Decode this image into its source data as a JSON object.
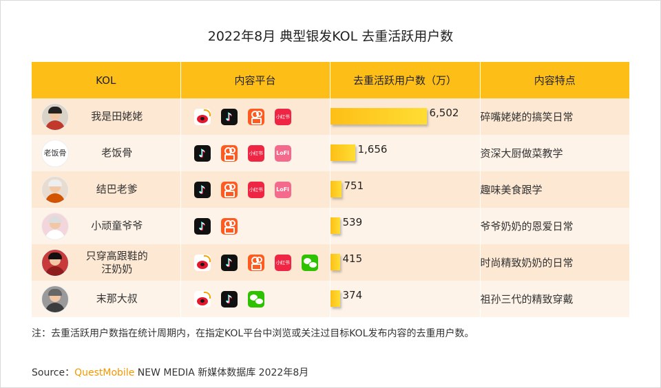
{
  "title": "2022年8月 典型银发KOL 去重活跃用户数",
  "table": {
    "headers": [
      "KOL",
      "内容平台",
      "去重活跃用户数（万）",
      "内容特点"
    ],
    "rows": [
      {
        "name": "我是田姥姥",
        "platforms": [
          "weibo",
          "douyin",
          "kuaishou",
          "xiaohongshu"
        ],
        "users": 6502,
        "users_label": "6,502",
        "feature": "碎嘴姥姥的搞笑日常",
        "avatar": "avatar-grandma"
      },
      {
        "name": "老饭骨",
        "platforms": [
          "douyin",
          "kuaishou",
          "xiaohongshu",
          "lofter"
        ],
        "users": 1656,
        "users_label": "1,656",
        "feature": "资深大厨做菜教学",
        "avatar": "avatar-logo",
        "avatar_text": "老饭骨"
      },
      {
        "name": "结巴老爹",
        "platforms": [
          "douyin",
          "kuaishou",
          "xiaohongshu",
          "lofter"
        ],
        "users": 751,
        "users_label": "751",
        "feature": "趣味美食跟学",
        "avatar": "avatar-grandpa"
      },
      {
        "name": "小顽童爷爷",
        "platforms": [
          "douyin",
          "kuaishou"
        ],
        "users": 539,
        "users_label": "539",
        "feature": "爷爷奶奶的恩爱日常",
        "avatar": "avatar-couple"
      },
      {
        "name": "只穿高跟鞋的\n汪奶奶",
        "platforms": [
          "weibo",
          "douyin",
          "kuaishou",
          "xiaohongshu",
          "wechat"
        ],
        "users": 415,
        "users_label": "415",
        "feature": "时尚精致奶奶的日常",
        "avatar": "avatar-fashion"
      },
      {
        "name": "末那大叔",
        "platforms": [
          "weibo",
          "douyin",
          "wechat"
        ],
        "users": 374,
        "users_label": "374",
        "feature": "祖孙三代的精致穿戴",
        "avatar": "avatar-uncle"
      }
    ]
  },
  "chart_data": {
    "type": "bar",
    "categories": [
      "我是田姥姥",
      "老饭骨",
      "结巴老爹",
      "小顽童爷爷",
      "只穿高跟鞋的汪奶奶",
      "末那大叔"
    ],
    "values": [
      6502,
      1656,
      751,
      539,
      415,
      374
    ],
    "title": "2022年8月 典型银发KOL 去重活跃用户数",
    "ylabel": "去重活跃用户数（万）",
    "orientation": "horizontal"
  },
  "platform_glyphs": {
    "douyin": "♪",
    "xiaohongshu": "小红书",
    "lofter": "LoFi"
  },
  "note": "注：去重活跃用户数指在统计周期内，在指定KOL平台中浏览或关注过目标KOL发布内容的去重用户数。",
  "source": {
    "label": "Source：",
    "brand": "QuestMobile",
    "text": " NEW MEDIA 新媒体数据库 2022年8月"
  },
  "colors": {
    "header": "#fdbf17",
    "row_odd": "#fde8d3",
    "row_even": "#fef3e8",
    "bar": "#fdbf17",
    "brand": "#f39800"
  }
}
